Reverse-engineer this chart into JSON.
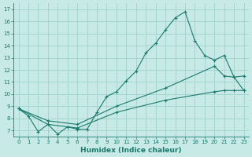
{
  "title": "",
  "xlabel": "Humidex (Indice chaleur)",
  "bg_color": "#c8eae6",
  "grid_color": "#a0d0cc",
  "line_color": "#1a7a6e",
  "xlim": [
    -0.5,
    23.5
  ],
  "ylim": [
    6.5,
    17.5
  ],
  "xticks": [
    0,
    1,
    2,
    3,
    4,
    5,
    6,
    7,
    8,
    9,
    10,
    11,
    12,
    13,
    14,
    15,
    16,
    17,
    18,
    19,
    20,
    21,
    22,
    23
  ],
  "yticks": [
    7,
    8,
    9,
    10,
    11,
    12,
    13,
    14,
    15,
    16,
    17
  ],
  "line1": {
    "x": [
      0,
      1,
      2,
      3,
      4,
      5,
      6,
      7,
      8,
      9,
      10,
      11,
      12,
      13,
      14,
      15,
      16,
      17,
      18,
      19,
      20,
      21,
      22,
      23
    ],
    "y": [
      8.8,
      8.2,
      6.9,
      7.5,
      6.7,
      7.3,
      7.1,
      7.1,
      8.5,
      9.8,
      10.2,
      11.1,
      11.9,
      13.4,
      14.2,
      15.3,
      16.3,
      16.8,
      14.4,
      13.2,
      12.8,
      13.2,
      11.4,
      10.3
    ]
  },
  "line2": {
    "x": [
      0,
      3,
      6,
      10,
      15,
      20,
      21,
      22,
      23
    ],
    "y": [
      8.8,
      7.8,
      7.5,
      9.0,
      10.5,
      12.3,
      11.5,
      11.4,
      11.5
    ]
  },
  "line3": {
    "x": [
      0,
      3,
      6,
      10,
      15,
      20,
      21,
      22,
      23
    ],
    "y": [
      8.8,
      7.5,
      7.2,
      8.5,
      9.5,
      10.2,
      10.3,
      10.3,
      10.3
    ]
  },
  "tick_fontsize": 5.0,
  "xlabel_fontsize": 6.5,
  "xlabel_fontweight": "bold"
}
